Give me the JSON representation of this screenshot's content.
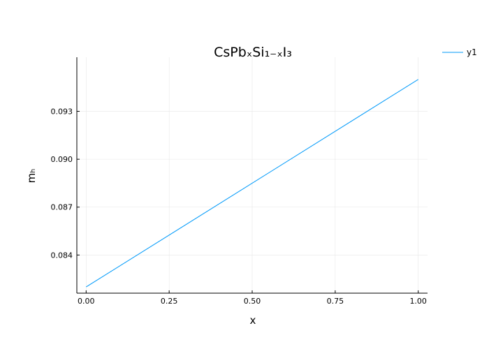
{
  "chart_data": {
    "type": "line",
    "title": "CsPbₓSi₁₋ₓI₃",
    "xlabel": "x",
    "ylabel": "mₕ",
    "xlim": [
      -0.028,
      1.028
    ],
    "ylim": [
      0.08161,
      0.09639
    ],
    "x_ticks": [
      0.0,
      0.25,
      0.5,
      0.75,
      1.0
    ],
    "x_tick_labels": [
      "0.00",
      "0.25",
      "0.50",
      "0.75",
      "1.00"
    ],
    "y_ticks": [
      0.084,
      0.087,
      0.09,
      0.093
    ],
    "y_tick_labels": [
      "0.084",
      "0.087",
      "0.090",
      "0.093"
    ],
    "grid": true,
    "legend_position": "top-right",
    "series": [
      {
        "name": "y1",
        "color": "#009AFA",
        "x": [
          0.0,
          1.0
        ],
        "y": [
          0.082,
          0.095
        ]
      }
    ]
  }
}
